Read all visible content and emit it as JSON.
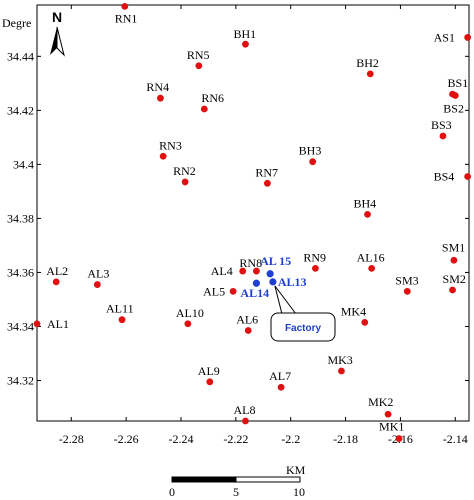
{
  "map": {
    "unit_label": "Degre",
    "north_label": "N",
    "x_range": [
      -2.2925,
      -2.135
    ],
    "y_range": [
      34.305,
      34.459
    ],
    "x_ticks": [
      {
        "value": -2.28,
        "label": "-2.28"
      },
      {
        "value": -2.26,
        "label": "-2.26"
      },
      {
        "value": -2.24,
        "label": "-2.24"
      },
      {
        "value": -2.22,
        "label": "-2.22"
      },
      {
        "value": -2.2,
        "label": "-2.2"
      },
      {
        "value": -2.18,
        "label": "-2.18"
      },
      {
        "value": -2.16,
        "label": "-2.16"
      },
      {
        "value": -2.14,
        "label": "-2.14"
      }
    ],
    "y_ticks": [
      {
        "value": 34.44,
        "label": "34.44"
      },
      {
        "value": 34.42,
        "label": "34.42"
      },
      {
        "value": 34.4,
        "label": "34.4"
      },
      {
        "value": 34.38,
        "label": "34.38"
      },
      {
        "value": 34.36,
        "label": "34.36"
      },
      {
        "value": 34.34,
        "label": "34.34"
      },
      {
        "value": 34.32,
        "label": "34.32"
      }
    ],
    "sites": [
      {
        "name": "RN1",
        "lon": -2.2605,
        "lat": 34.4585,
        "color": "#e01010",
        "lx": -10,
        "ly": 16
      },
      {
        "name": "BH1",
        "lon": -2.2165,
        "lat": 34.4445,
        "color": "#e01010",
        "lx": -12,
        "ly": -6
      },
      {
        "name": "AS1",
        "lon": -2.1355,
        "lat": 34.447,
        "color": "#e01010",
        "lx": -34,
        "ly": 4
      },
      {
        "name": "RN5",
        "lon": -2.2335,
        "lat": 34.4365,
        "color": "#e01010",
        "lx": -12,
        "ly": -7
      },
      {
        "name": "BH2",
        "lon": -2.171,
        "lat": 34.4335,
        "color": "#e01010",
        "lx": -14,
        "ly": -7
      },
      {
        "name": "BS1",
        "lon": -2.141,
        "lat": 34.426,
        "color": "#e01010",
        "lx": -5,
        "ly": -7
      },
      {
        "name": "BS2",
        "lon": -2.14,
        "lat": 34.4255,
        "color": "#e01010",
        "lx": -12,
        "ly": 17
      },
      {
        "name": "RN4",
        "lon": -2.2475,
        "lat": 34.4245,
        "color": "#e01010",
        "lx": -14,
        "ly": -7
      },
      {
        "name": "RN6",
        "lon": -2.2315,
        "lat": 34.4205,
        "color": "#e01010",
        "lx": -3,
        "ly": -7
      },
      {
        "name": "BS3",
        "lon": -2.1445,
        "lat": 34.4105,
        "color": "#e01010",
        "lx": -12,
        "ly": -7
      },
      {
        "name": "RN3",
        "lon": -2.2465,
        "lat": 34.403,
        "color": "#e01010",
        "lx": -4,
        "ly": -7
      },
      {
        "name": "BH3",
        "lon": -2.192,
        "lat": 34.401,
        "color": "#e01010",
        "lx": -14,
        "ly": -7
      },
      {
        "name": "RN2",
        "lon": -2.2385,
        "lat": 34.3935,
        "color": "#e01010",
        "lx": -12,
        "ly": -7
      },
      {
        "name": "RN7",
        "lon": -2.2085,
        "lat": 34.393,
        "color": "#e01010",
        "lx": -12,
        "ly": -7
      },
      {
        "name": "BS4",
        "lon": -2.1355,
        "lat": 34.3955,
        "color": "#e01010",
        "lx": -34,
        "ly": 4
      },
      {
        "name": "BH4",
        "lon": -2.172,
        "lat": 34.3815,
        "color": "#e01010",
        "lx": -14,
        "ly": -7
      },
      {
        "name": "RN8",
        "lon": -2.2125,
        "lat": 34.3605,
        "color": "#e01010",
        "lx": -17,
        "ly": -4
      },
      {
        "name": "AL4",
        "lon": -2.2175,
        "lat": 34.3605,
        "color": "#e01010",
        "lx": -32,
        "ly": 4
      },
      {
        "name": "RN9",
        "lon": -2.191,
        "lat": 34.3615,
        "color": "#e01010",
        "lx": -12,
        "ly": -7
      },
      {
        "name": "AL16",
        "lon": -2.1705,
        "lat": 34.3615,
        "color": "#e01010",
        "lx": -15,
        "ly": -7
      },
      {
        "name": "SM1",
        "lon": -2.1405,
        "lat": 34.3645,
        "color": "#e01010",
        "lx": -12,
        "ly": -9
      },
      {
        "name": "AL2",
        "lon": -2.2855,
        "lat": 34.3565,
        "color": "#e01010",
        "lx": -10,
        "ly": -7
      },
      {
        "name": "AL3",
        "lon": -2.2705,
        "lat": 34.3555,
        "color": "#e01010",
        "lx": -10,
        "ly": -7
      },
      {
        "name": "AL5",
        "lon": -2.221,
        "lat": 34.353,
        "color": "#e01010",
        "lx": -30,
        "ly": 4
      },
      {
        "name": "SM3",
        "lon": -2.1575,
        "lat": 34.353,
        "color": "#e01010",
        "lx": -12,
        "ly": -7
      },
      {
        "name": "SM2",
        "lon": -2.141,
        "lat": 34.3535,
        "color": "#e01010",
        "lx": -10,
        "ly": -7
      },
      {
        "name": "AL1",
        "lon": -2.2925,
        "lat": 34.341,
        "color": "#e01010",
        "lx": 10,
        "ly": 4
      },
      {
        "name": "AL11",
        "lon": -2.2615,
        "lat": 34.3425,
        "color": "#e01010",
        "lx": -16,
        "ly": -7
      },
      {
        "name": "AL10",
        "lon": -2.2375,
        "lat": 34.341,
        "color": "#e01010",
        "lx": -12,
        "ly": -7
      },
      {
        "name": "AL6",
        "lon": -2.2155,
        "lat": 34.3385,
        "color": "#e01010",
        "lx": -12,
        "ly": -7
      },
      {
        "name": "MK4",
        "lon": -2.173,
        "lat": 34.3415,
        "color": "#e01010",
        "lx": -24,
        "ly": -7
      },
      {
        "name": "MK3",
        "lon": -2.1815,
        "lat": 34.3235,
        "color": "#e01010",
        "lx": -14,
        "ly": -7
      },
      {
        "name": "AL9",
        "lon": -2.2295,
        "lat": 34.3195,
        "color": "#e01010",
        "lx": -12,
        "ly": -7
      },
      {
        "name": "AL7",
        "lon": -2.2035,
        "lat": 34.3175,
        "color": "#e01010",
        "lx": -12,
        "ly": -7
      },
      {
        "name": "MK2",
        "lon": -2.1645,
        "lat": 34.3075,
        "color": "#e01010",
        "lx": -20,
        "ly": -8
      },
      {
        "name": "AL8",
        "lon": -2.2165,
        "lat": 34.305,
        "color": "#e01010",
        "lx": -12,
        "ly": -7
      },
      {
        "name": "MK1",
        "lon": -2.1605,
        "lat": 34.2985,
        "color": "#e01010",
        "lx": -20,
        "ly": -8
      },
      {
        "name": "AL 15",
        "lon": -2.2075,
        "lat": 34.3595,
        "color": "#1f3fd0",
        "lx": -10,
        "ly": -9
      },
      {
        "name": "AL13",
        "lon": -2.2065,
        "lat": 34.3565,
        "color": "#1f3fd0",
        "lx": 5,
        "ly": 4
      },
      {
        "name": "AL14",
        "lon": -2.2125,
        "lat": 34.356,
        "color": "#1f3fd0",
        "lx": -16,
        "ly": 14
      }
    ],
    "factory_label": "Factory",
    "factory_lon": -2.2065,
    "factory_lat": 34.3565,
    "scale_bar": {
      "unit": "KM",
      "labels": [
        "0",
        "5",
        "10"
      ]
    }
  }
}
